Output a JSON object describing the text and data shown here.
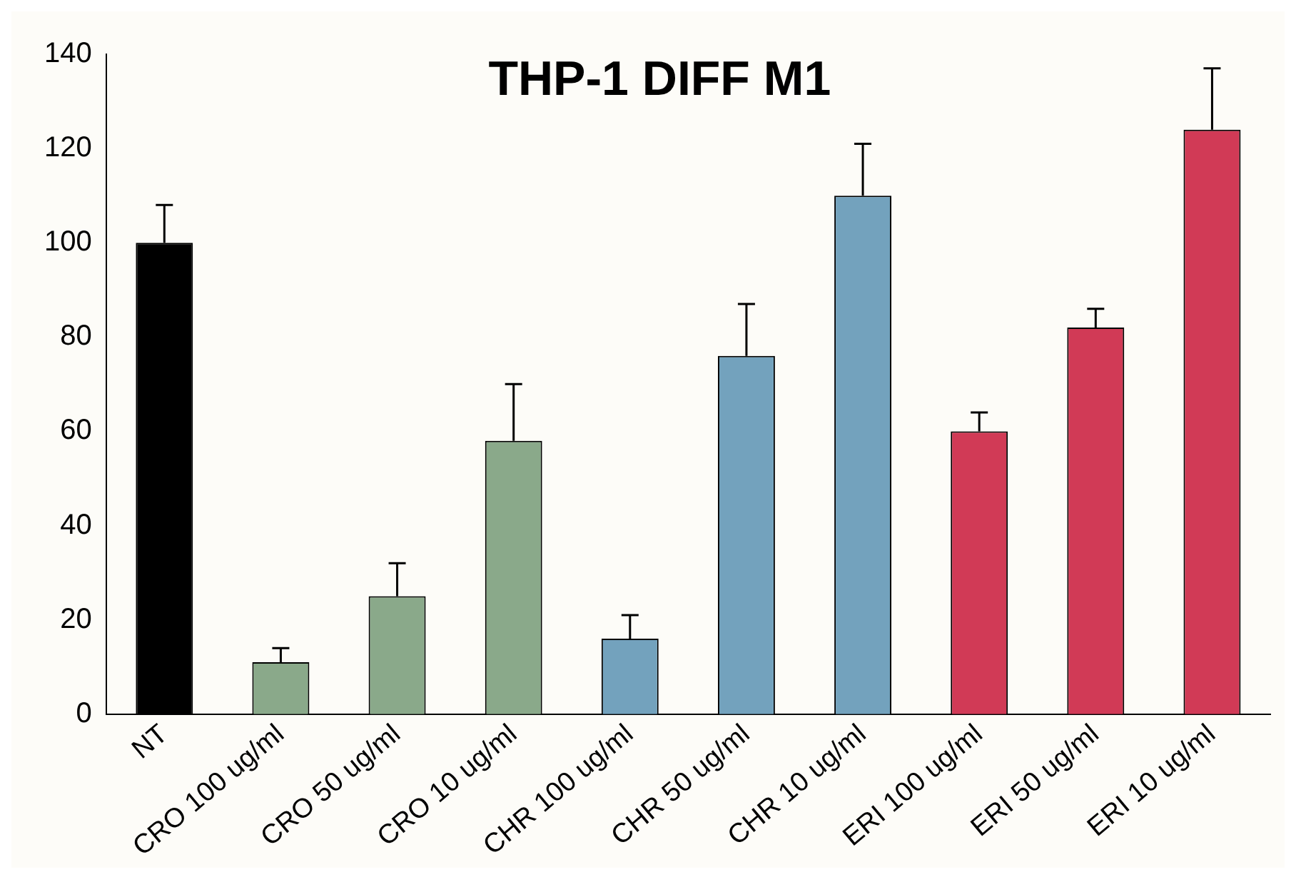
{
  "chart_data": {
    "type": "bar",
    "title": "THP-1 DIFF M1",
    "categories": [
      "NT",
      "CRO 100 ug/ml",
      "CRO 50 ug/ml",
      "CRO 10 ug/ml",
      "CHR 100 ug/ml",
      "CHR 50 ug/ml",
      "CHR 10 ug/ml",
      "ERI 100 ug/ml",
      "ERI 50 ug/ml",
      "ERI 10 ug/ml"
    ],
    "values": [
      100,
      11,
      25,
      58,
      16,
      76,
      110,
      60,
      82,
      124
    ],
    "errors": [
      [
        100,
        108
      ],
      [
        11,
        14
      ],
      [
        25,
        32
      ],
      [
        58,
        70
      ],
      [
        16,
        21
      ],
      [
        76,
        87
      ],
      [
        110,
        121
      ],
      [
        60,
        64
      ],
      [
        82,
        86
      ],
      [
        124,
        137
      ]
    ],
    "colors": [
      "#000000",
      "#8aa98a",
      "#8aa98a",
      "#8aa98a",
      "#73a2bd",
      "#73a2bd",
      "#73a2bd",
      "#d13a56",
      "#d13a56",
      "#d13a56"
    ],
    "ylim": [
      0,
      140
    ],
    "yticks": [
      0,
      20,
      40,
      60,
      80,
      100,
      120,
      140
    ],
    "grid": false,
    "legend": false
  }
}
